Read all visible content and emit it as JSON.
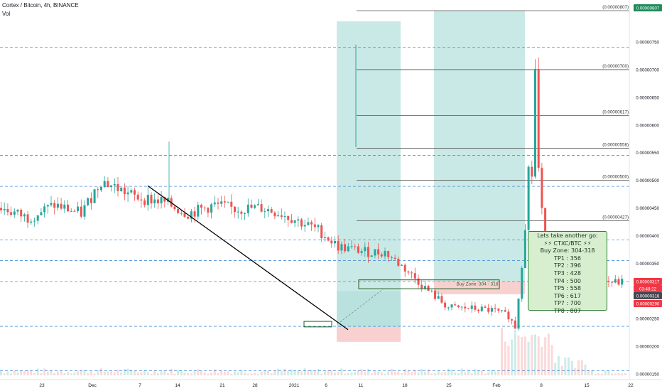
{
  "header": {
    "title": "Cortex / Bitcoin, 4h, BINANCE",
    "volume_label": "Vol"
  },
  "colors": {
    "up_candle": "#26a69a",
    "down_candle": "#ef5350",
    "hline_blue": "#4a90d9",
    "hline_red": "#e35b5b",
    "profit_zone": "#b2dfdb",
    "loss_zone": "#f8c8c8",
    "note_bg": "#d7efcf",
    "price_tag_red": "#f23645",
    "price_tag_dark": "#434651"
  },
  "chart_data": {
    "type": "candlestick",
    "symbol_unit": "BTC",
    "y_axis": {
      "range": [
        1.5e-06,
        8.1e-06
      ],
      "tick_labels": [
        "0.00000750",
        "0.00000700",
        "0.00000650",
        "0.00000600",
        "0.00000550",
        "0.00000500",
        "0.00000450",
        "0.00000400",
        "0.00000350",
        "0.00000300",
        "0.00000250",
        "0.00000200",
        "0.00000150"
      ]
    },
    "x_axis": {
      "tick_labels": [
        "23",
        "Dec",
        "7",
        "14",
        "21",
        "28",
        "2021",
        "6",
        "11",
        "18",
        "25",
        "Feb",
        "8",
        "15",
        "22"
      ]
    },
    "price_path": [
      [
        0,
        4.5e-06
      ],
      [
        8,
        4.32e-06
      ],
      [
        16,
        4.55e-06
      ],
      [
        24,
        4.4e-06
      ],
      [
        30,
        5e-06
      ],
      [
        40,
        4.7e-06
      ],
      [
        48,
        4.62e-06
      ],
      [
        56,
        4.4e-06
      ],
      [
        64,
        4.55e-06
      ],
      [
        70,
        4.48e-06
      ],
      [
        78,
        4.5e-06
      ],
      [
        84,
        4.4e-06
      ],
      [
        95,
        4.1e-06
      ],
      [
        101,
        3.8e-06
      ],
      [
        110,
        3.7e-06
      ],
      [
        115,
        3.7e-06
      ],
      [
        121,
        3.4e-06
      ],
      [
        128,
        3e-06
      ],
      [
        134,
        2.7e-06
      ],
      [
        141,
        2.68e-06
      ],
      [
        147,
        2.65e-06
      ],
      [
        152,
        2.55e-06
      ],
      [
        154,
        2.35e-06
      ],
      [
        155,
        2.9e-06
      ],
      [
        156,
        3.5e-06
      ],
      [
        157,
        4.2e-06
      ],
      [
        158,
        5.2e-06
      ],
      [
        159,
        5.1e-06
      ],
      [
        160,
        7e-06
      ],
      [
        161,
        5.2e-06
      ],
      [
        162,
        4.4e-06
      ],
      [
        163,
        3.9e-06
      ],
      [
        164,
        3.4e-06
      ],
      [
        166,
        3.25e-06
      ],
      [
        169,
        3.15e-06
      ],
      [
        172,
        3.2e-06
      ],
      [
        176,
        3.12e-06
      ],
      [
        180,
        3.18e-06
      ],
      [
        184,
        3.15e-06
      ],
      [
        186,
        3.16e-06
      ]
    ],
    "volume_note": "volume histogram along the bottom with a spike around Jan 8-12",
    "horizontal_levels_blue": [
      7.4e-06,
      5.45e-06,
      4.89e-06,
      3.92e-06,
      3.55e-06,
      2.36e-06,
      1.56e-06
    ],
    "horizontal_level_red": 3.17e-06,
    "trend_line": {
      "from": [
        "Dec 10",
        4.9e-06
      ],
      "to": [
        "Jan 7",
        2.3e-06
      ]
    },
    "fib_levels": [
      {
        "value": 8.07e-06,
        "label": "(0.00000807)"
      },
      {
        "value": 7e-06,
        "label": "(0.00000700)"
      },
      {
        "value": 6.17e-06,
        "label": "(0.00000617)"
      },
      {
        "value": 5.58e-06,
        "label": "(0.00000558)"
      },
      {
        "value": 5e-06,
        "label": "(0.00000500)"
      },
      {
        "value": 4.27e-06,
        "label": "(0.00000427)"
      }
    ],
    "buy_zone_label": "Buy Zone: 304 - 318",
    "price_tags": [
      {
        "value": "0.00000807",
        "style": "teal"
      },
      {
        "value": "0.00000317",
        "style": "red"
      },
      {
        "value": "03:48:22",
        "style": "red"
      },
      {
        "value": "0.00000316",
        "style": "dark"
      },
      {
        "value": "0.00000290",
        "style": "red"
      }
    ]
  },
  "note": {
    "lines": [
      "Lets take another go:",
      "⚡⚡ CTXC/BTC ⚡⚡",
      "Buy Zone: 304-318",
      "TP1 : 356",
      "TP2 : 396",
      "TP3 : 428",
      "TP4 : 500",
      "TP5 : 558",
      "TP6 : 617",
      "TP7 : 700",
      "TP8 : 807"
    ]
  }
}
